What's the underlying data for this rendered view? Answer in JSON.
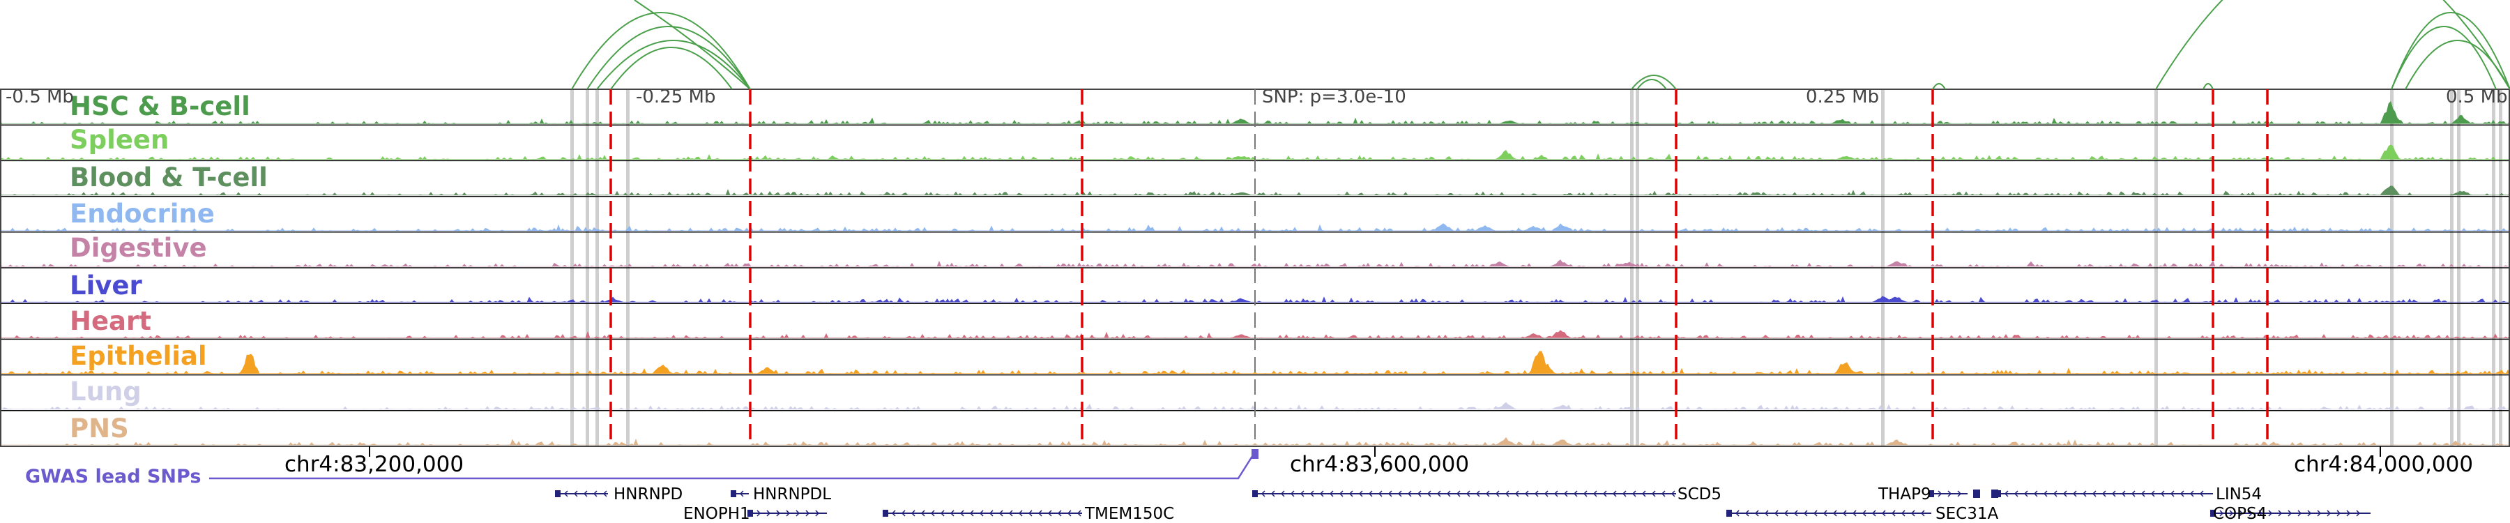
{
  "colors": {
    "hsc": "#4d9c4d",
    "spleen": "#7ccf5c",
    "blood": "#5e8f5e",
    "endocrine": "#8fb8f0",
    "digestive": "#c483a6",
    "liver": "#4b4bd1",
    "heart": "#d46a7e",
    "epithelial": "#f4a020",
    "lung": "#cfcfe8",
    "pns": "#e0b48a",
    "gwas": "#6a5acd",
    "gene": "#22227a",
    "loop": "#4aa04a",
    "red_marker": "#e00000",
    "gray_marker": "#cfcfcf"
  },
  "tracks": [
    {
      "id": "hsc",
      "label": "HSC & B-cell"
    },
    {
      "id": "spleen",
      "label": "Spleen"
    },
    {
      "id": "blood",
      "label": "Blood & T-cell"
    },
    {
      "id": "endocrine",
      "label": "Endocrine"
    },
    {
      "id": "digestive",
      "label": "Digestive"
    },
    {
      "id": "liver",
      "label": "Liver"
    },
    {
      "id": "heart",
      "label": "Heart"
    },
    {
      "id": "epithelial",
      "label": "Epithelial"
    },
    {
      "id": "lung",
      "label": "Lung"
    },
    {
      "id": "pns",
      "label": "PNS"
    }
  ],
  "scale_labels": {
    "minus_half": "-0.5 Mb",
    "minus_quarter": "-0.25 Mb",
    "snp": "SNP: p=3.0e-10",
    "plus_quarter": "0.25 Mb",
    "plus_half": "0.5 Mb"
  },
  "coordinates": {
    "c1": "chr4:83,200,000",
    "c2": "chr4:83,600,000",
    "c3": "chr4:84,000,000"
  },
  "gwas_label": "GWAS lead SNPs",
  "genes": {
    "hnrnpd": "HNRNPD",
    "hnrnpdl": "HNRNPDL",
    "enoph1": "ENOPH1",
    "tmem150c": "TMEM150C",
    "scd5": "SCD5",
    "thap9": "THAP9",
    "sec31a": "SEC31A",
    "lin54": "LIN54",
    "cops4": "COPS4"
  }
}
